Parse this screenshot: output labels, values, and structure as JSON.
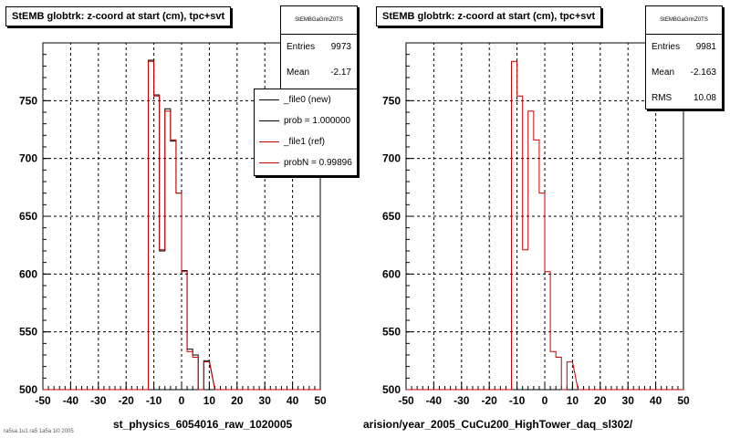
{
  "colors": {
    "new": "#000000",
    "ref": "#cc0000",
    "grid": "#000000"
  },
  "left": {
    "title": "StEMB globtrk: z-coord at start (cm), tpc+svt",
    "stats": {
      "header": "StEMBGaGrlnZ0TS",
      "rows": [
        {
          "k": "Entries",
          "v": "9973"
        },
        {
          "k": "Mean",
          "v": "-2.17"
        }
      ]
    },
    "legend": [
      {
        "label": "_file0 (new)",
        "color": "#000000"
      },
      {
        "label": "prob = 1.000000",
        "color": "#000000"
      },
      {
        "label": "_file1 (ref)",
        "color": "#cc0000"
      },
      {
        "label": "probN = 0.99896",
        "color": "#cc0000"
      }
    ],
    "footer": "st_physics_6054016_raw_1020005"
  },
  "right": {
    "title": "StEMB globtrk: z-coord at start (cm), tpc+svt",
    "stats": {
      "header": "StEMBGaGrlnZ0TS",
      "rows": [
        {
          "k": "Entries",
          "v": "9981"
        },
        {
          "k": "Mean",
          "v": "-2.163"
        },
        {
          "k": "RMS",
          "v": "10.08"
        }
      ]
    },
    "footer": "arision/year_2005_CuCu200_HighTower_daq_sl302/"
  },
  "bottom_left_small": "ra5sa 1u1 ra5 1a5a 1i0 2005",
  "chart_data": [
    {
      "type": "histogram",
      "title": "StEMB globtrk: z-coord at start (cm), tpc+svt",
      "xlim": [
        -50,
        50
      ],
      "ylim": [
        500,
        800
      ],
      "xticks": [
        -50,
        -40,
        -30,
        -20,
        -10,
        0,
        10,
        20,
        30,
        40,
        50
      ],
      "yticks": [
        500,
        550,
        600,
        650,
        700,
        750
      ],
      "grid": true,
      "bin_width": 2,
      "series": [
        {
          "name": "_file0 (new)",
          "color": "#000000",
          "edges": [
            -12,
            -10,
            -8,
            -6,
            -4,
            -2,
            0,
            2,
            4,
            6,
            8,
            10
          ],
          "values": [
            785,
            755,
            620,
            743,
            715,
            670,
            603,
            535,
            530,
            500,
            525
          ]
        },
        {
          "name": "_file1 (ref)",
          "color": "#cc0000",
          "edges": [
            -12,
            -10,
            -8,
            -6,
            -4,
            -2,
            0,
            2,
            4,
            6,
            8,
            10
          ],
          "values": [
            784,
            754,
            621,
            741,
            716,
            670,
            602,
            533,
            528,
            500,
            524
          ]
        }
      ]
    },
    {
      "type": "histogram",
      "title": "StEMB globtrk: z-coord at start (cm), tpc+svt",
      "xlim": [
        -50,
        50
      ],
      "ylim": [
        500,
        800
      ],
      "xticks": [
        -50,
        -40,
        -30,
        -20,
        -10,
        0,
        10,
        20,
        30,
        40,
        50
      ],
      "yticks": [
        500,
        550,
        600,
        650,
        700,
        750
      ],
      "grid": true,
      "bin_width": 2,
      "series": [
        {
          "name": "_file1 (ref)",
          "color": "#cc0000",
          "edges": [
            -12,
            -10,
            -8,
            -6,
            -4,
            -2,
            0,
            2,
            4,
            6,
            8,
            10
          ],
          "values": [
            784,
            754,
            621,
            741,
            716,
            670,
            602,
            533,
            528,
            500,
            524
          ]
        }
      ]
    }
  ]
}
